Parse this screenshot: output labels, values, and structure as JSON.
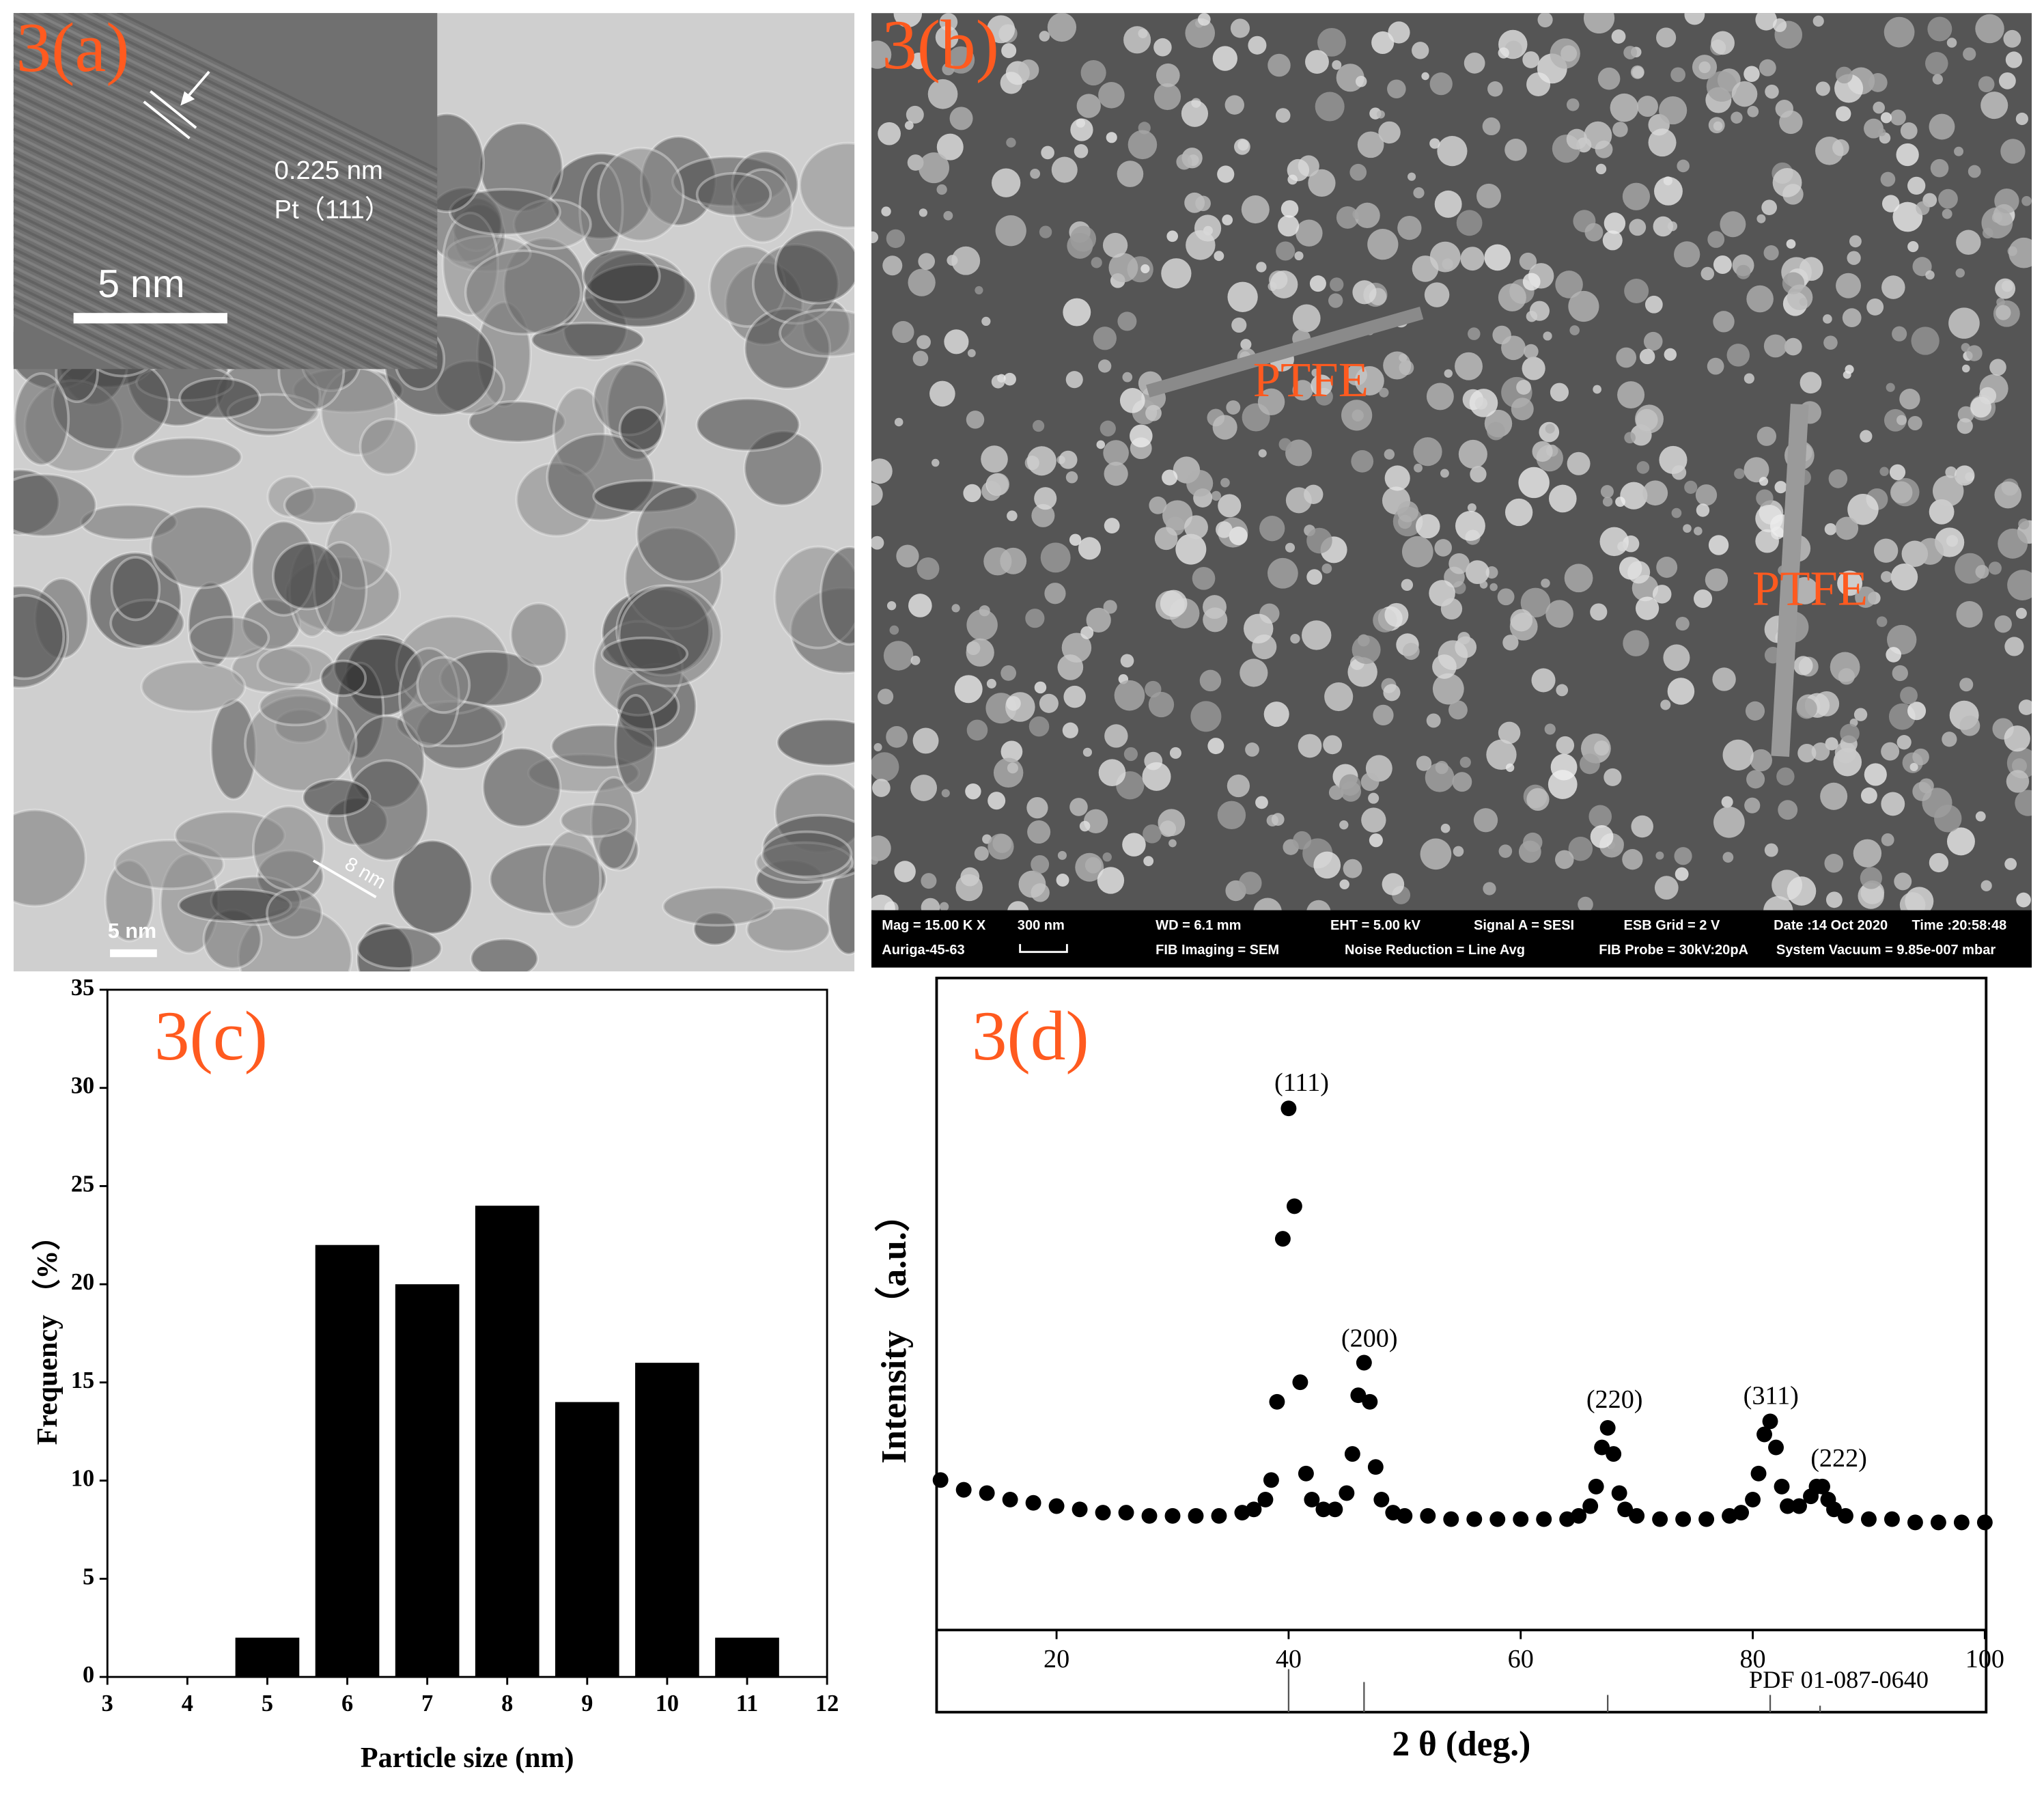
{
  "figure": {
    "panel_a": {
      "label": "3(a)",
      "inset_spacing": "0.225 nm",
      "inset_plane": "Pt（111）",
      "inset_scale": "5 nm",
      "particle_size": "8 nm",
      "scale": "5 nm"
    },
    "panel_b": {
      "label": "3(b)",
      "annotations": [
        "PTFE",
        "PTFE"
      ],
      "info_bar": [
        "Mag = 15.00 K X",
        "300 nm",
        "WD = 6.1 mm",
        "EHT = 5.00 kV",
        "Signal A = SESI",
        "ESB Grid = 2 V",
        "Date :14 Oct 2020",
        "Time :20:58:48",
        "Auriga-45-63",
        "FIB Imaging = SEM",
        "Noise Reduction = Line Avg",
        "FIB Probe = 30kV:20pA",
        "System Vacuum = 9.85e-007 mbar"
      ]
    }
  },
  "chart_data": [
    {
      "type": "bar",
      "label": "3(c)",
      "xlabel": "Particle size (nm)",
      "ylabel": "Frequency （%）",
      "x": [
        5,
        6,
        7,
        8,
        9,
        10,
        11
      ],
      "values": [
        2,
        22,
        20,
        24,
        14,
        16,
        2
      ],
      "color": "#000000",
      "xlim": [
        3,
        12
      ],
      "xticks": [
        3,
        4,
        5,
        6,
        7,
        8,
        9,
        10,
        11,
        12
      ],
      "ylim": [
        0,
        35
      ],
      "yticks": [
        0,
        5,
        10,
        15,
        20,
        25,
        30,
        35
      ]
    },
    {
      "type": "scatter",
      "label": "3(d)",
      "xlabel": "2 θ (deg.)",
      "ylabel": "Intensity （a.u.）",
      "color": "#000000",
      "x": [
        10,
        12,
        14,
        16,
        18,
        20,
        22,
        24,
        26,
        28,
        30,
        32,
        34,
        36,
        37,
        38,
        38.5,
        39,
        39.5,
        40,
        40.5,
        41,
        41.5,
        42,
        43,
        44,
        45,
        45.5,
        46,
        46.5,
        47,
        47.5,
        48,
        49,
        50,
        52,
        54,
        56,
        58,
        60,
        62,
        64,
        65,
        66,
        66.5,
        67,
        67.5,
        68,
        68.5,
        69,
        70,
        72,
        74,
        76,
        78,
        79,
        80,
        80.5,
        81,
        81.5,
        82,
        82.5,
        83,
        84,
        85,
        85.5,
        86,
        86.5,
        87,
        88,
        90,
        92,
        94,
        96,
        98,
        100
      ],
      "values": [
        23,
        21.5,
        21,
        20,
        19.5,
        19,
        18.5,
        18,
        18,
        17.5,
        17.5,
        17.5,
        17.5,
        18,
        18.5,
        20,
        23,
        35,
        60,
        80,
        65,
        38,
        24,
        20,
        18.5,
        18.5,
        21,
        27,
        36,
        41,
        35,
        25,
        20,
        18,
        17.5,
        17.5,
        17,
        17,
        17,
        17,
        17,
        17,
        17.5,
        19,
        22,
        28,
        31,
        27,
        21,
        18.5,
        17.5,
        17,
        17,
        17,
        17.5,
        18,
        20,
        24,
        30,
        32,
        28,
        22,
        19,
        19,
        20.5,
        22,
        22,
        20,
        18.5,
        17.5,
        17,
        17,
        16.5,
        16.5,
        16.5,
        16.5
      ],
      "xlim": [
        10,
        100
      ],
      "xticks": [
        20,
        40,
        60,
        80,
        100
      ],
      "ylim": [
        0,
        100
      ],
      "annotations": [
        "(111)",
        "(200)",
        "(220)",
        "(311)",
        "(222)"
      ],
      "reference": {
        "name": "PDF 01-087-0640",
        "x": [
          40,
          46.5,
          67.5,
          81.5,
          85.8
        ],
        "values": [
          100,
          70,
          40,
          40,
          15
        ]
      }
    }
  ]
}
